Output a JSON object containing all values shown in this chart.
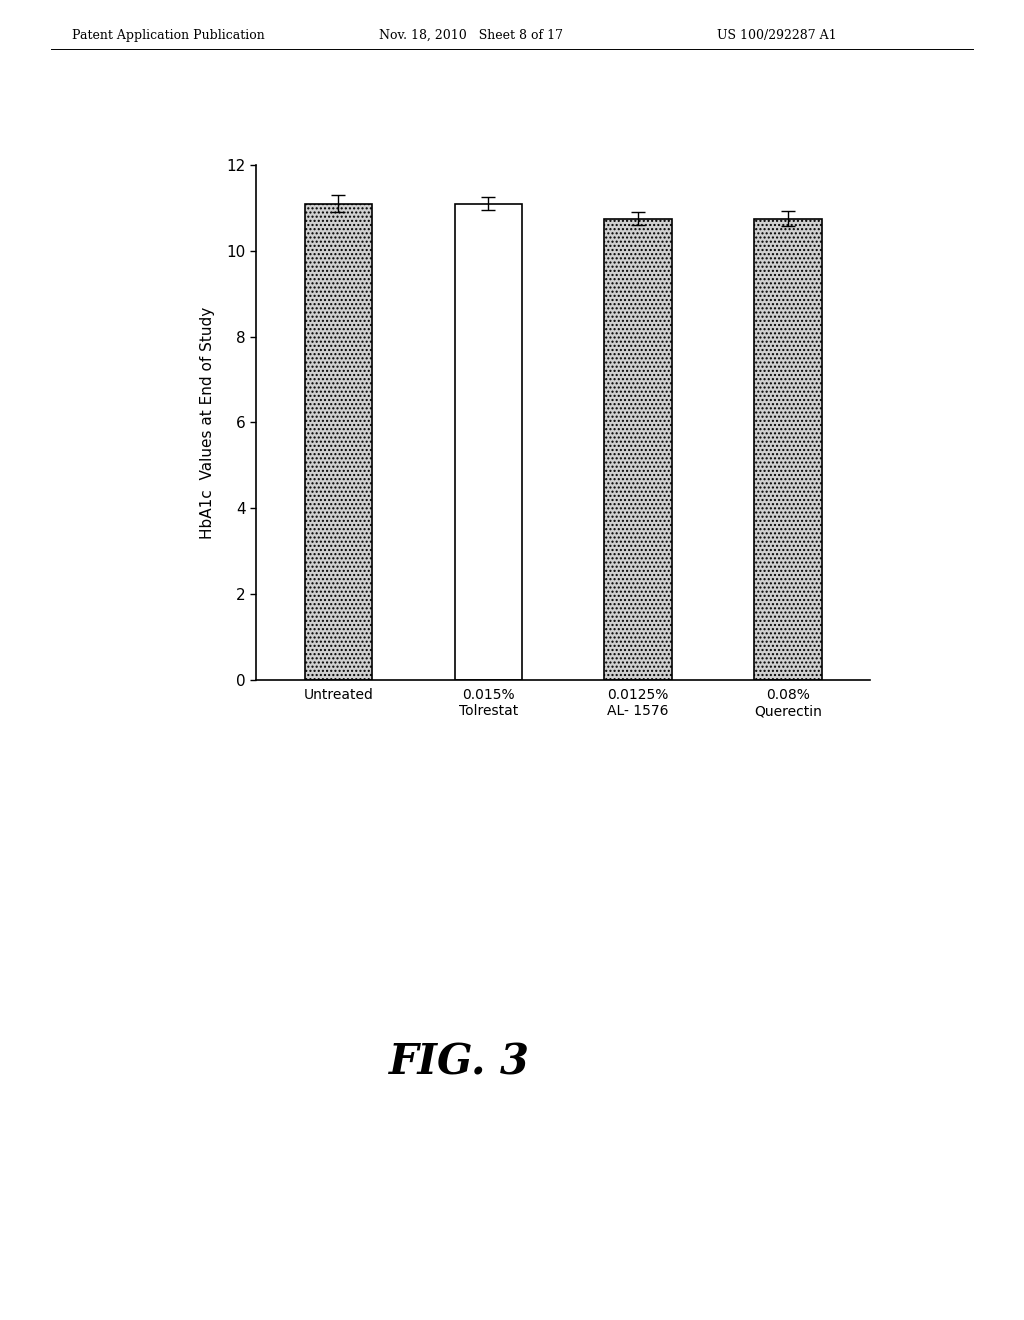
{
  "categories": [
    "Untreated",
    "0.015%\nTolrestat",
    "0.0125%\nAL- 1576",
    "0.08%\nQuerectin"
  ],
  "values": [
    11.1,
    11.1,
    10.75,
    10.75
  ],
  "errors": [
    0.2,
    0.15,
    0.15,
    0.18
  ],
  "bar_colors": [
    "dotted",
    "white",
    "dotted",
    "dotted"
  ],
  "ylabel": "HbA1c  Values at End of Study",
  "ylim": [
    0,
    12
  ],
  "yticks": [
    0,
    2,
    4,
    6,
    8,
    10,
    12
  ],
  "figure_title": "FIG. 3",
  "header_left": "Patent Application Publication",
  "header_mid": "Nov. 18, 2010   Sheet 8 of 17",
  "header_right": "US 100/292287 A1",
  "background_color": "#ffffff",
  "bar_width": 0.45,
  "stipple_color": "#c0c0c0"
}
